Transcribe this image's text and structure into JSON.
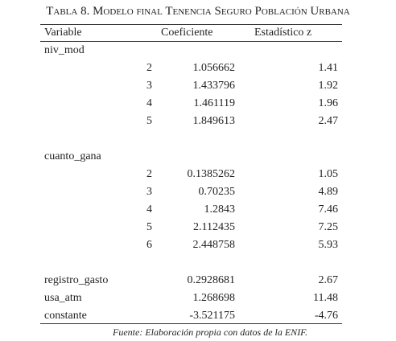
{
  "table": {
    "title": "Tabla 8. Modelo final Tenencia Seguro Población Urbana",
    "headers": [
      "Variable",
      "Coeficiente",
      "Estadístico z"
    ],
    "groups": [
      {
        "variable": "niv_mod",
        "levels": [
          {
            "level": "2",
            "coeficiente": "1.056662",
            "z": "1.41"
          },
          {
            "level": "3",
            "coeficiente": "1.433796",
            "z": "1.92"
          },
          {
            "level": "4",
            "coeficiente": "1.461119",
            "z": "1.96"
          },
          {
            "level": "5",
            "coeficiente": "1.849613",
            "z": "2.47"
          }
        ]
      },
      {
        "variable": "cuanto_gana",
        "levels": [
          {
            "level": "2",
            "coeficiente": "0.1385262",
            "z": "1.05"
          },
          {
            "level": "3",
            "coeficiente": "0.70235",
            "z": "4.89"
          },
          {
            "level": "4",
            "coeficiente": "1.2843",
            "z": "7.46"
          },
          {
            "level": "5",
            "coeficiente": "2.112435",
            "z": "7.25"
          },
          {
            "level": "6",
            "coeficiente": "2.448758",
            "z": "5.93"
          }
        ]
      }
    ],
    "rows": [
      {
        "variable": "registro_gasto",
        "coeficiente": "0.2928681",
        "z": "2.67"
      },
      {
        "variable": "usa_atm",
        "coeficiente": "1.268698",
        "z": "11.48"
      },
      {
        "variable": "constante",
        "coeficiente": "-3.521175",
        "z": "-4.76"
      }
    ],
    "source": "Fuente: Elaboración propia con datos de la ENIF."
  }
}
